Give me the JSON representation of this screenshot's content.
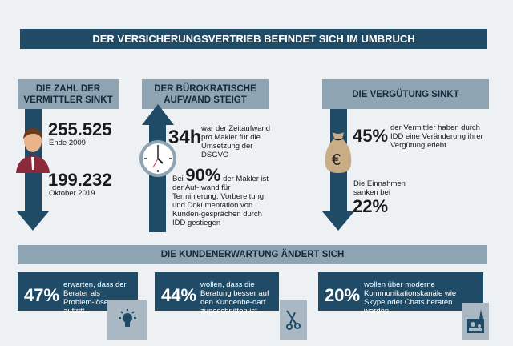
{
  "title": "DER VERSICHERUNGSVERTRIEB BEFINDET SICH IM UMBRUCH",
  "col1": {
    "header_line1": "DIE ZAHL DER",
    "header_line2": "VERMITTLER SINKT",
    "value1": "255.525",
    "label1": "Ende 2009",
    "value2": "199.232",
    "label2": "Oktober 2019"
  },
  "col2": {
    "header_line1": "DER BÜROKRATISCHE",
    "header_line2": "AUFWAND STEIGT",
    "value1": "34h",
    "text1": "war der Zeitaufwand pro Makler für die Umsetzung der DSGVO",
    "prefix2": "Bei",
    "value2": "90%",
    "text2a": "der Makler ist der Auf-",
    "text2b": "wand für Terminierung, Vorbereitung und Dokumentation von Kunden-gesprächen durch IDD gestiegen"
  },
  "col3": {
    "header": "DIE VERGÜTUNG SINKT",
    "value1": "45%",
    "text1": "der Vermittler haben durch IDD eine Veränderung ihrer Vergütung erlebt",
    "text2": "Die Einnahmen sanken bei",
    "value2": "22%",
    "currency": "€"
  },
  "section": "DIE KUNDENERWARTUNG ÄNDERT SICH",
  "cards": [
    {
      "pct": "47%",
      "text": "erwarten, dass der Berater als Problem-löser auftritt"
    },
    {
      "pct": "44%",
      "text": "wollen, dass die Beratung besser auf den Kundenbe-darf zugeschnitten ist"
    },
    {
      "pct": "20%",
      "text": "wollen über moderne Kommunikationskanäle wie Skype oder Chats beraten werden"
    }
  ],
  "colors": {
    "dark": "#1f4b67",
    "header": "#8fa4b3",
    "bg": "#eef1f3",
    "person": "#8b2a3a",
    "bag": "#c8ad86"
  }
}
